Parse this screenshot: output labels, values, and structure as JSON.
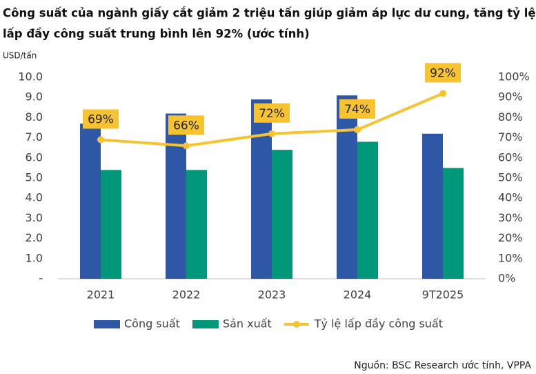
{
  "chart_data": {
    "type": "bar_line",
    "title": [
      "Công suất của ngành giấy cắt giảm 2 triệu tấn giúp giảm áp lực dư cung, tăng tỷ lệ",
      "lấp đầy công suất trung bình lên 92% (ước tính)"
    ],
    "y_label": "USD/tấn",
    "source": "Nguồn: BSC Research ước tính, VPPA",
    "categories": [
      "2021",
      "2022",
      "2023",
      "2024",
      "9T2025"
    ],
    "series": [
      {
        "name": "Công suất",
        "type": "bar",
        "color": "#2e58a6",
        "values": [
          7.7,
          8.2,
          8.9,
          9.1,
          7.2
        ]
      },
      {
        "name": "Sản xuất",
        "type": "bar",
        "color": "#00977a",
        "values": [
          5.4,
          5.4,
          6.4,
          6.8,
          5.5
        ]
      },
      {
        "name": "Tỷ lệ lấp đầy công suất",
        "type": "line",
        "axis": "y2",
        "color": "#f7c331",
        "values": [
          69,
          66,
          72,
          74,
          92
        ],
        "value_labels": [
          "69%",
          "66%",
          "72%",
          "74%",
          "92%"
        ]
      }
    ],
    "ylim": [
      0,
      10
    ],
    "yticks": [
      {
        "value": 0,
        "label": "-"
      },
      {
        "value": 1,
        "label": "1.0"
      },
      {
        "value": 2,
        "label": "2.0"
      },
      {
        "value": 3,
        "label": "3.0"
      },
      {
        "value": 4,
        "label": "4.0"
      },
      {
        "value": 5,
        "label": "5.0"
      },
      {
        "value": 6,
        "label": "6.0"
      },
      {
        "value": 7,
        "label": "7.0"
      },
      {
        "value": 8,
        "label": "8.0"
      },
      {
        "value": 9,
        "label": "9.0"
      },
      {
        "value": 10,
        "label": "10.0"
      }
    ],
    "y2lim": [
      0,
      100
    ],
    "y2ticks": [
      {
        "value": 0,
        "label": "0%"
      },
      {
        "value": 10,
        "label": "10%"
      },
      {
        "value": 20,
        "label": "20%"
      },
      {
        "value": 30,
        "label": "30%"
      },
      {
        "value": 40,
        "label": "40%"
      },
      {
        "value": 50,
        "label": "50%"
      },
      {
        "value": 60,
        "label": "60%"
      },
      {
        "value": 70,
        "label": "70%"
      },
      {
        "value": 80,
        "label": "80%"
      },
      {
        "value": 90,
        "label": "90%"
      },
      {
        "value": 100,
        "label": "100%"
      }
    ],
    "legend": "bottom"
  }
}
